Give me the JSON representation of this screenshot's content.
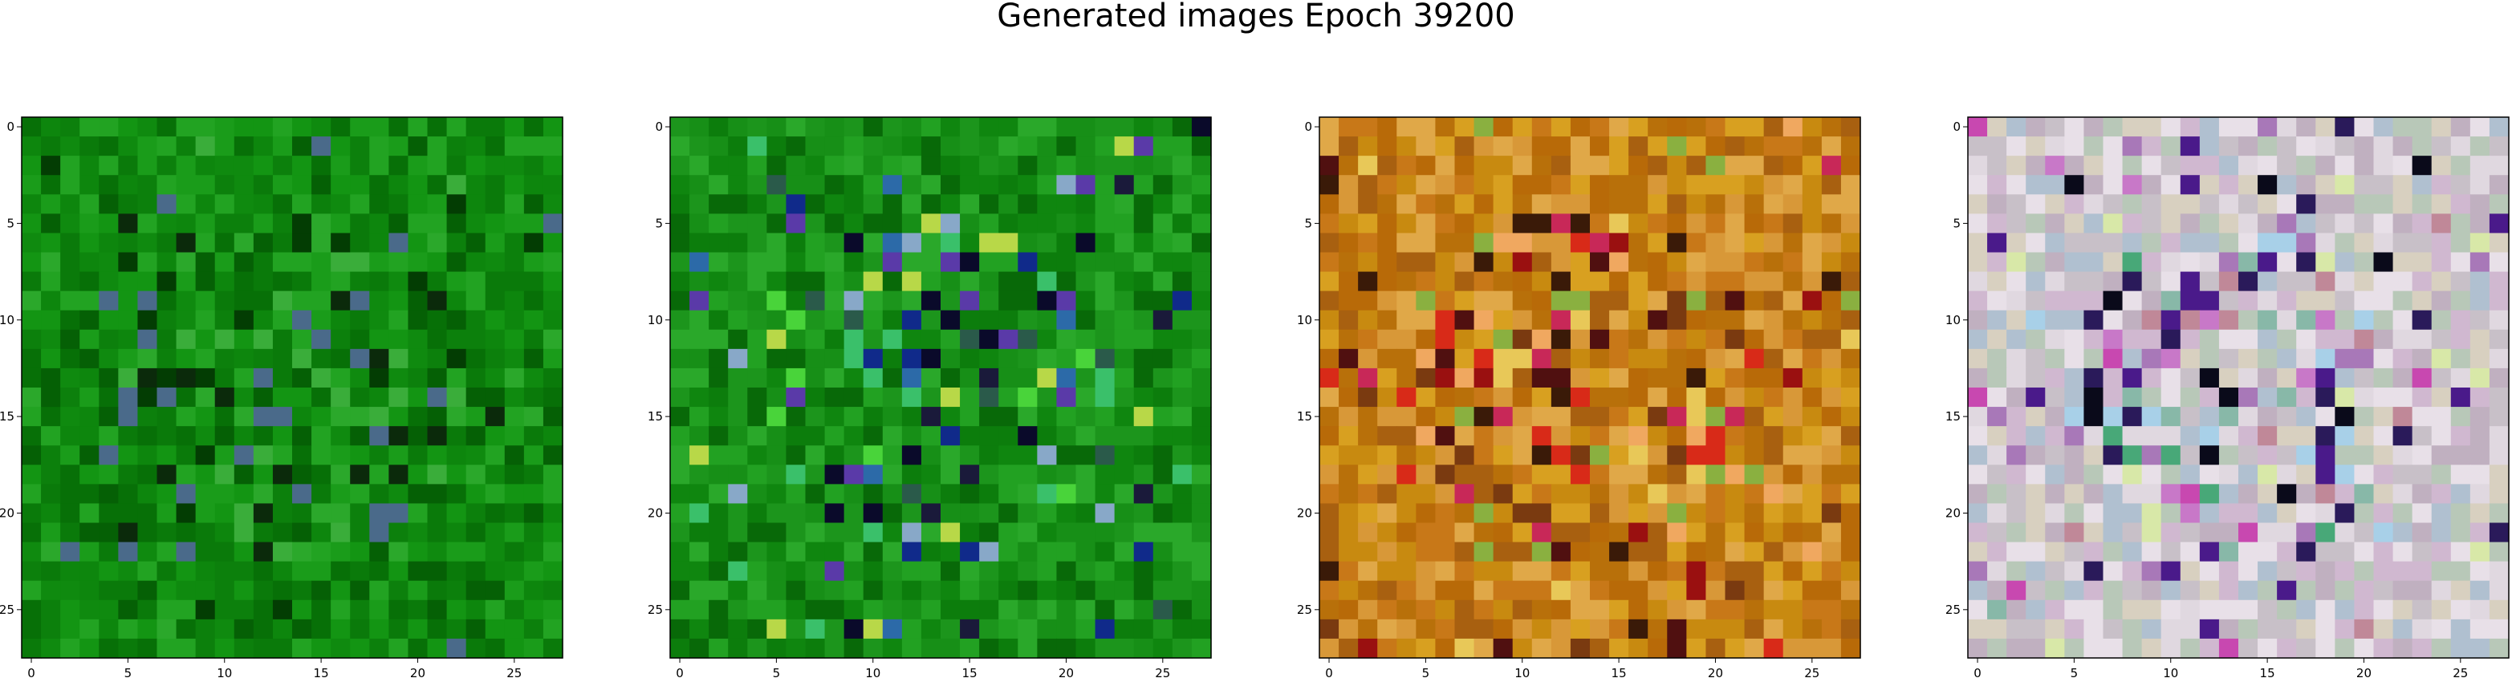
{
  "title": "Generated images Epoch 39200",
  "chart_data": [
    {
      "type": "heatmap",
      "grid_size": 28,
      "xlim": [
        -0.5,
        27.5
      ],
      "ylim": [
        27.5,
        -0.5
      ],
      "xticks": [
        0,
        5,
        10,
        15,
        20,
        25
      ],
      "yticks": [
        0,
        5,
        10,
        15,
        20,
        25
      ],
      "xtick_labels": [
        "0",
        "5",
        "10",
        "15",
        "20",
        "25"
      ],
      "ytick_labels": [
        "0",
        "5",
        "10",
        "15",
        "20",
        "25"
      ],
      "palette": [
        "#0a7a0a",
        "#0f8a0f",
        "#077007",
        "#139513",
        "#1a9c1a",
        "#056005",
        "#0c800c",
        "#22a322",
        "#0d860d"
      ],
      "accent": [
        "#2ba82b",
        "#033d03",
        "#3aad3a",
        "#4a6a8a",
        "#0b2a0b"
      ]
    },
    {
      "type": "heatmap",
      "grid_size": 28,
      "xlim": [
        -0.5,
        27.5
      ],
      "ylim": [
        27.5,
        -0.5
      ],
      "xticks": [
        0,
        5,
        10,
        15,
        20,
        25
      ],
      "yticks": [
        0,
        5,
        10,
        15,
        20,
        25
      ],
      "xtick_labels": [
        "0",
        "5",
        "10",
        "15",
        "20",
        "25"
      ],
      "ytick_labels": [
        "0",
        "5",
        "10",
        "15",
        "20",
        "25"
      ],
      "palette": [
        "#178f17",
        "#0c7d0c",
        "#22a122",
        "#0f860f",
        "#2aa82a",
        "#086908",
        "#1c951c"
      ],
      "accent": [
        "#102a8a",
        "#2c6aa8",
        "#1a1a3a",
        "#49d43a",
        "#88a8c8",
        "#5a3aa8",
        "#0a0a2a",
        "#3ac06a",
        "#b8d848",
        "#2a5a4a"
      ]
    },
    {
      "type": "heatmap",
      "grid_size": 28,
      "xlim": [
        -0.5,
        27.5
      ],
      "ylim": [
        27.5,
        -0.5
      ],
      "xticks": [
        0,
        5,
        10,
        15,
        20,
        25
      ],
      "yticks": [
        0,
        5,
        10,
        15,
        20,
        25
      ],
      "xtick_labels": [
        "0",
        "5",
        "10",
        "15",
        "20",
        "25"
      ],
      "ytick_labels": [
        "0",
        "5",
        "10",
        "15",
        "20",
        "25"
      ],
      "palette": [
        "#c88a10",
        "#b8700a",
        "#d8a020",
        "#a86010",
        "#c87818",
        "#d89838",
        "#b86a08",
        "#e0a848"
      ],
      "accent": [
        "#9a1010",
        "#d82a18",
        "#3a1a08",
        "#e8c858",
        "#7a3a10",
        "#8ab040",
        "#c82858",
        "#501010",
        "#f0a860"
      ]
    },
    {
      "type": "heatmap",
      "grid_size": 28,
      "xlim": [
        -0.5,
        27.5
      ],
      "ylim": [
        27.5,
        -0.5
      ],
      "xticks": [
        0,
        5,
        10,
        15,
        20,
        25
      ],
      "yticks": [
        0,
        5,
        10,
        15,
        20,
        25
      ],
      "xtick_labels": [
        "0",
        "5",
        "10",
        "15",
        "20",
        "25"
      ],
      "ytick_labels": [
        "0",
        "5",
        "10",
        "15",
        "20",
        "25"
      ],
      "palette": [
        "#c8c0c8",
        "#d0b8d0",
        "#b8c8b8",
        "#e0d8e0",
        "#c0b0c0",
        "#d8d0c0",
        "#b0c0d0",
        "#e8e0e8"
      ],
      "accent": [
        "#c878c8",
        "#88b8a8",
        "#2a1a5a",
        "#a878b8",
        "#48a878",
        "#d8e8a8",
        "#a8d0e8",
        "#c08898",
        "#0a0a1a",
        "#c848b0",
        "#4a1a8a"
      ]
    }
  ]
}
